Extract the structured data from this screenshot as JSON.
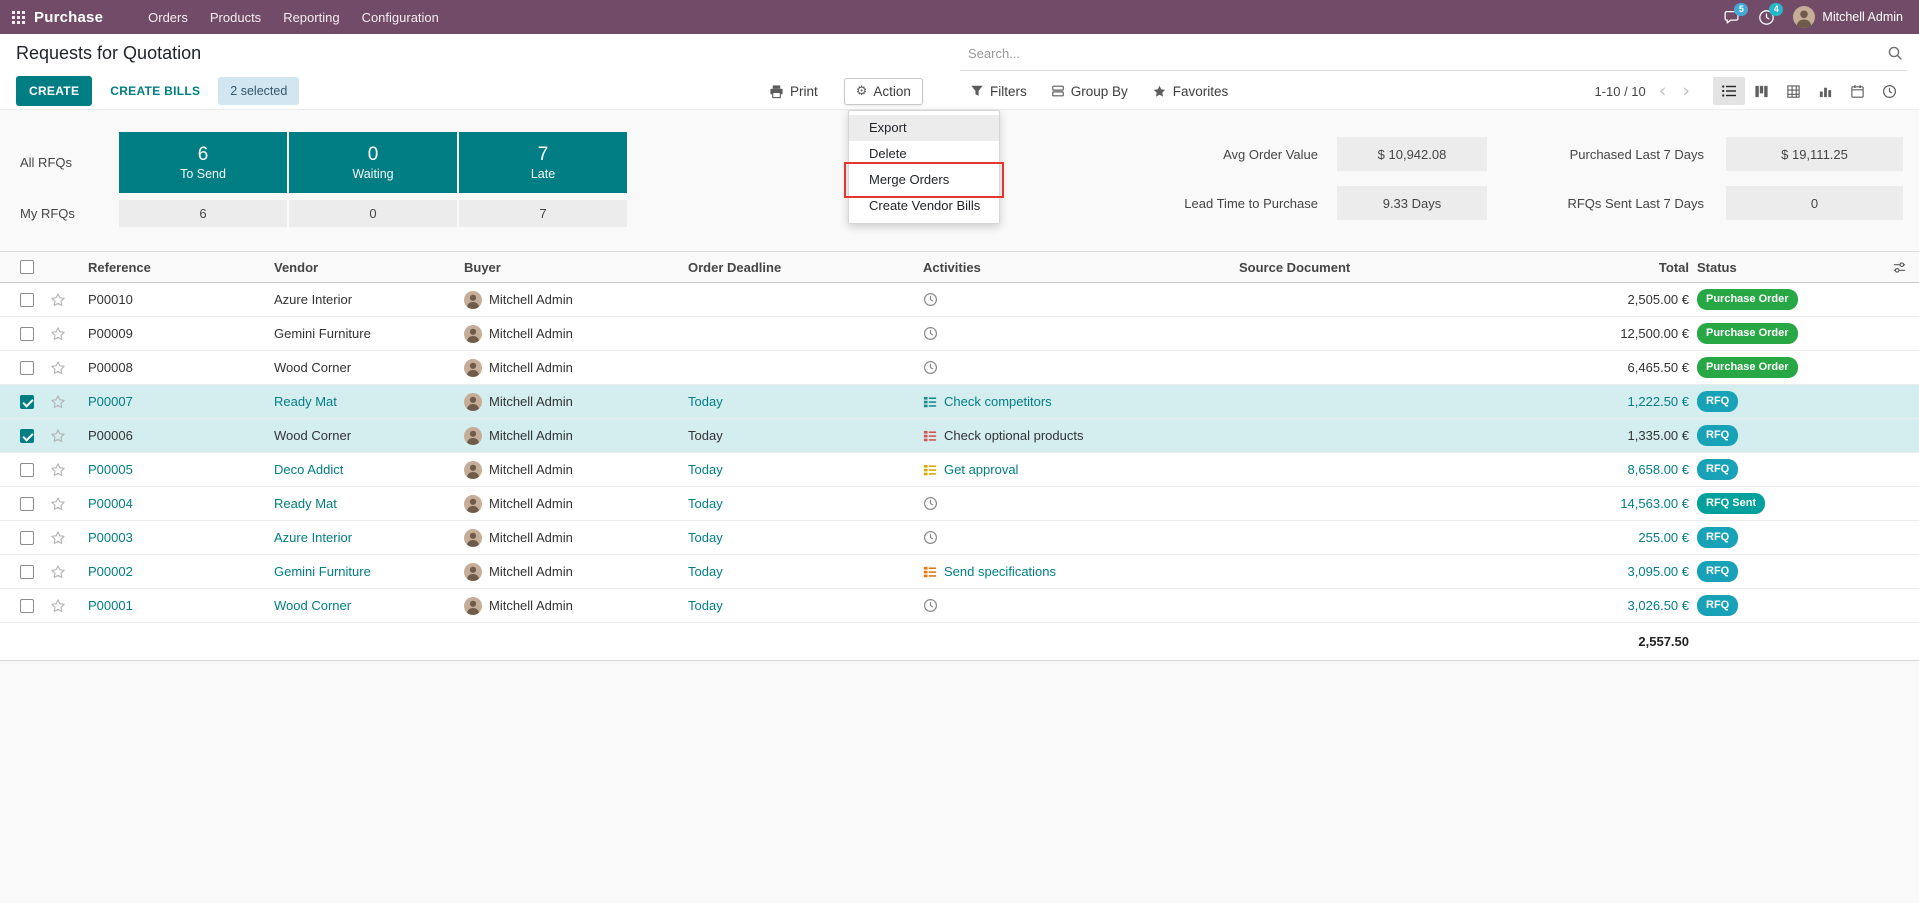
{
  "colors": {
    "topbar_brand": "#714B67",
    "primary_teal": "#017e84",
    "selected_row_bg": "#d4edef",
    "status_purchase_order": "#28a745",
    "status_rfq": "#17a2b8",
    "status_rfq_sent": "#00a09d",
    "annotation_red": "#e5342f"
  },
  "icons": {
    "apps": "grid-icon",
    "messages": "speech-bubble-icon",
    "activities_tray": "clock-icon",
    "search": "magnifier-icon",
    "print": "printer-icon",
    "action": "gear-icon",
    "filters": "funnel-icon",
    "group_by": "layers-icon",
    "favorites": "star-icon",
    "views": [
      "list-icon",
      "kanban-icon",
      "pivot-icon",
      "graph-icon",
      "calendar-icon",
      "activity-clock-icon"
    ],
    "optional_columns": "sliders-icon",
    "row_activity": [
      "clock-icon",
      "tasks-icon"
    ],
    "row_favorite": "star-outline-icon"
  },
  "topbar": {
    "app_name": "Purchase",
    "menus": [
      "Orders",
      "Products",
      "Reporting",
      "Configuration"
    ],
    "messages_badge": "5",
    "activities_badge": "4",
    "user_name": "Mitchell Admin"
  },
  "control_panel": {
    "breadcrumb": "Requests for Quotation",
    "search_placeholder": "Search...",
    "pager": "1-10 / 10"
  },
  "actions": {
    "create": "CREATE",
    "create_bills": "CREATE BILLS",
    "selection_count": "2 selected",
    "print": "Print",
    "action": "Action",
    "filters": "Filters",
    "group_by": "Group By",
    "favorites": "Favorites"
  },
  "action_menu": {
    "items": [
      "Export",
      "Delete",
      "Merge Orders",
      "Create Vendor Bills"
    ],
    "highlighted_item": "Merge Orders"
  },
  "dashboard": {
    "left": {
      "rows_labels": [
        "All RFQs",
        "My RFQs"
      ],
      "stats": [
        {
          "all_value": "6",
          "label": "To Send",
          "my_value": "6"
        },
        {
          "all_value": "0",
          "label": "Waiting",
          "my_value": "0"
        },
        {
          "all_value": "7",
          "label": "Late",
          "my_value": "7"
        }
      ]
    },
    "kpis": [
      {
        "label": "Avg Order Value",
        "value": "$ 10,942.08"
      },
      {
        "label": "Purchased Last 7 Days",
        "value": "$ 19,111.25"
      },
      {
        "label": "Lead Time to Purchase",
        "value": "9.33 Days"
      },
      {
        "label": "RFQs Sent Last 7 Days",
        "value": "0"
      }
    ]
  },
  "table": {
    "columns": [
      "Reference",
      "Vendor",
      "Buyer",
      "Order Deadline",
      "Activities",
      "Source Document",
      "Total",
      "Status"
    ],
    "rows": [
      {
        "reference": "P00010",
        "vendor": "Azure Interior",
        "buyer": "Mitchell Admin",
        "deadline": "",
        "activity_icon": "clock",
        "activity_color": "",
        "activity_label": "",
        "activity_tone": "",
        "source": "",
        "total": "2,505.00 €",
        "status": "Purchase Order",
        "status_kind": "purchase_order",
        "checked": false,
        "selected": false,
        "tone": "dark"
      },
      {
        "reference": "P00009",
        "vendor": "Gemini Furniture",
        "buyer": "Mitchell Admin",
        "deadline": "",
        "activity_icon": "clock",
        "activity_color": "",
        "activity_label": "",
        "activity_tone": "",
        "source": "",
        "total": "12,500.00 €",
        "status": "Purchase Order",
        "status_kind": "purchase_order",
        "checked": false,
        "selected": false,
        "tone": "dark"
      },
      {
        "reference": "P00008",
        "vendor": "Wood Corner",
        "buyer": "Mitchell Admin",
        "deadline": "",
        "activity_icon": "clock",
        "activity_color": "",
        "activity_label": "",
        "activity_tone": "",
        "source": "",
        "total": "6,465.50 €",
        "status": "Purchase Order",
        "status_kind": "purchase_order",
        "checked": false,
        "selected": false,
        "tone": "dark"
      },
      {
        "reference": "P00007",
        "vendor": "Ready Mat",
        "buyer": "Mitchell Admin",
        "deadline": "Today",
        "activity_icon": "tasks",
        "activity_color": "#1a8a8f",
        "activity_label": "Check competitors",
        "activity_tone": "teal",
        "source": "",
        "total": "1,222.50 €",
        "status": "RFQ",
        "status_kind": "rfq",
        "checked": true,
        "selected": true,
        "tone": "teal"
      },
      {
        "reference": "P00006",
        "vendor": "Wood Corner",
        "buyer": "Mitchell Admin",
        "deadline": "Today",
        "activity_icon": "tasks",
        "activity_color": "#d9534f",
        "activity_label": "Check optional products",
        "activity_tone": "dark",
        "source": "",
        "total": "1,335.00 €",
        "status": "RFQ",
        "status_kind": "rfq",
        "checked": true,
        "selected": true,
        "tone": "dark"
      },
      {
        "reference": "P00005",
        "vendor": "Deco Addict",
        "buyer": "Mitchell Admin",
        "deadline": "Today",
        "activity_icon": "tasks",
        "activity_color": "#d8a800",
        "activity_label": "Get approval",
        "activity_tone": "teal",
        "source": "",
        "total": "8,658.00 €",
        "status": "RFQ",
        "status_kind": "rfq",
        "checked": false,
        "selected": false,
        "tone": "teal"
      },
      {
        "reference": "P00004",
        "vendor": "Ready Mat",
        "buyer": "Mitchell Admin",
        "deadline": "Today",
        "activity_icon": "clock",
        "activity_color": "",
        "activity_label": "",
        "activity_tone": "",
        "source": "",
        "total": "14,563.00 €",
        "status": "RFQ Sent",
        "status_kind": "rfq_sent",
        "checked": false,
        "selected": false,
        "tone": "teal"
      },
      {
        "reference": "P00003",
        "vendor": "Azure Interior",
        "buyer": "Mitchell Admin",
        "deadline": "Today",
        "activity_icon": "clock",
        "activity_color": "",
        "activity_label": "",
        "activity_tone": "",
        "source": "",
        "total": "255.00 €",
        "status": "RFQ",
        "status_kind": "rfq",
        "checked": false,
        "selected": false,
        "tone": "teal"
      },
      {
        "reference": "P00002",
        "vendor": "Gemini Furniture",
        "buyer": "Mitchell Admin",
        "deadline": "Today",
        "activity_icon": "tasks",
        "activity_color": "#e8750f",
        "activity_label": "Send specifications",
        "activity_tone": "teal",
        "source": "",
        "total": "3,095.00 €",
        "status": "RFQ",
        "status_kind": "rfq",
        "checked": false,
        "selected": false,
        "tone": "teal"
      },
      {
        "reference": "P00001",
        "vendor": "Wood Corner",
        "buyer": "Mitchell Admin",
        "deadline": "Today",
        "activity_icon": "clock",
        "activity_color": "",
        "activity_label": "",
        "activity_tone": "",
        "source": "",
        "total": "3,026.50 €",
        "status": "RFQ",
        "status_kind": "rfq",
        "checked": false,
        "selected": false,
        "tone": "teal"
      }
    ],
    "footer_total": "2,557.50"
  }
}
